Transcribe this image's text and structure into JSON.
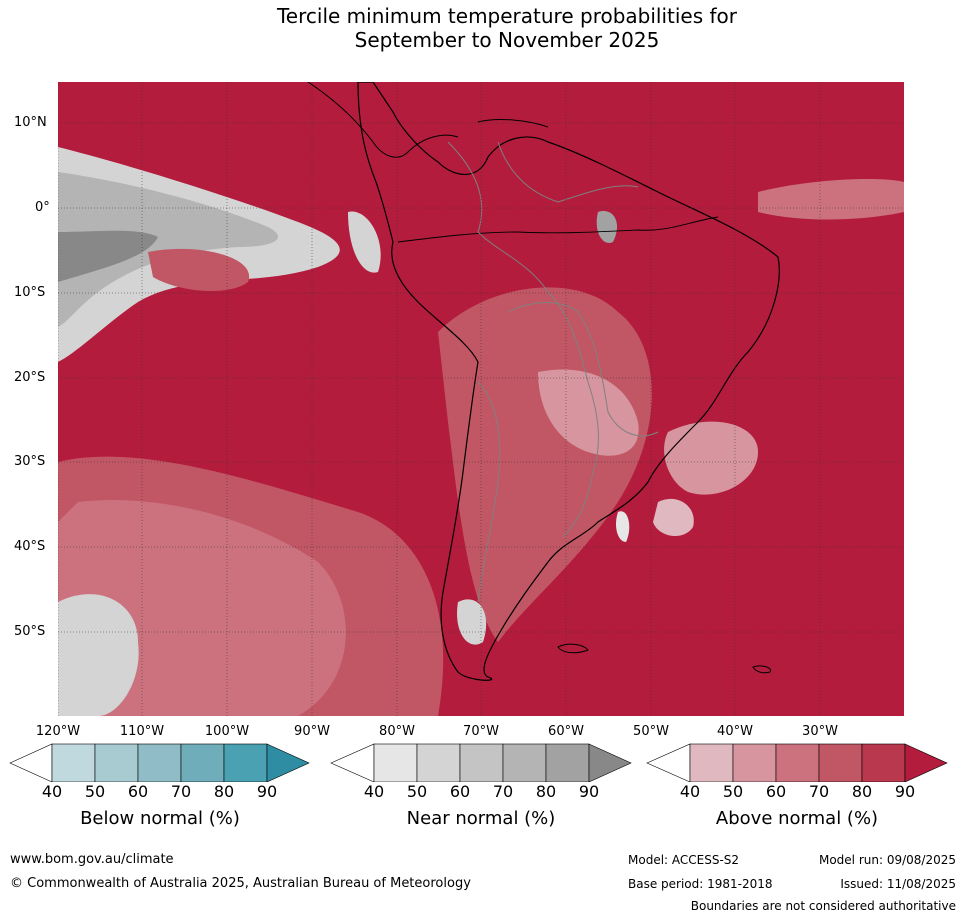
{
  "title_line1": "Tercile minimum temperature probabilities for",
  "title_line2": "September to November 2025",
  "map": {
    "lat_labels": [
      "10°N",
      "0°",
      "10°S",
      "20°S",
      "30°S",
      "40°S",
      "50°S"
    ],
    "lon_labels": [
      "120°W",
      "110°W",
      "100°W",
      "90°W",
      "80°W",
      "70°W",
      "60°W",
      "50°W",
      "40°W",
      "30°W"
    ],
    "colors": {
      "above": [
        "#e0b9c0",
        "#d7959f",
        "#cb727e",
        "#c15664",
        "#b9384e",
        "#b31c3c"
      ],
      "near": [
        "#e6e6e6",
        "#d4d4d4",
        "#c4c4c4",
        "#b4b4b4",
        "#a2a2a2",
        "#888888"
      ],
      "below": [
        "#bfd9df",
        "#a8cbd2",
        "#8fbcc6",
        "#6fadbb",
        "#4aa1b2",
        "#2e8da3"
      ],
      "coast": "#000000",
      "borders": "#808080"
    }
  },
  "colorbars": [
    {
      "label": "Below normal (%)",
      "ticks": [
        "40",
        "50",
        "60",
        "70",
        "80",
        "90"
      ]
    },
    {
      "label": "Near normal (%)",
      "ticks": [
        "40",
        "50",
        "60",
        "70",
        "80",
        "90"
      ]
    },
    {
      "label": "Above normal (%)",
      "ticks": [
        "40",
        "50",
        "60",
        "70",
        "80",
        "90"
      ]
    }
  ],
  "footer": {
    "url": "www.bom.gov.au/climate",
    "copyright": "© Commonwealth of Australia 2025, Australian Bureau of Meteorology",
    "model": "Model: ACCESS-S2",
    "model_run": "Model run: 09/08/2025",
    "base_period": "Base period: 1981-2018",
    "issued": "Issued: 11/08/2025",
    "disclaimer": "Boundaries are not considered authoritative"
  }
}
